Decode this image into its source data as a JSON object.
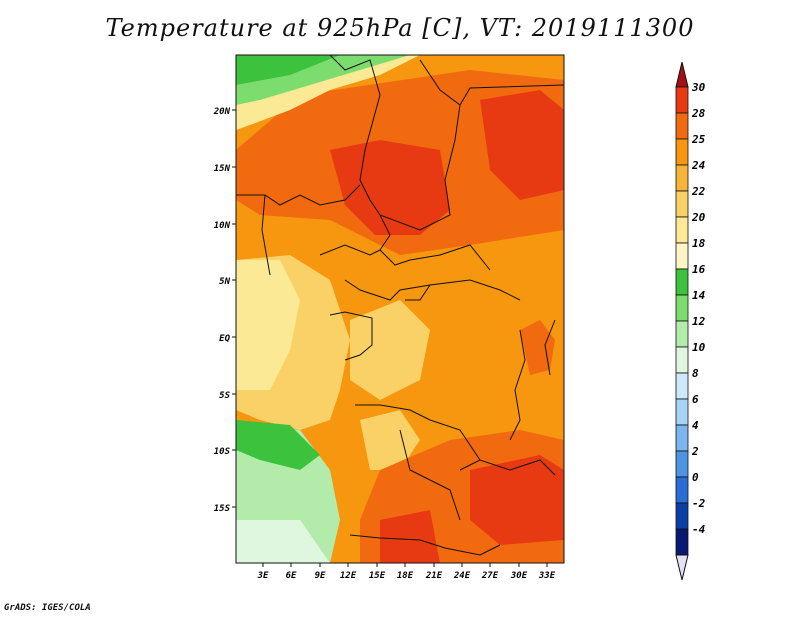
{
  "title": "Temperature at 925hPa [C], VT: 2019111300",
  "credit": "GrADS: IGES/COLA",
  "map": {
    "lat_labels": [
      "20N",
      "15N",
      "10N",
      "5N",
      "EQ",
      "5S",
      "10S",
      "15S"
    ],
    "lon_labels": [
      "3E",
      "6E",
      "9E",
      "12E",
      "15E",
      "18E",
      "21E",
      "24E",
      "27E",
      "30E",
      "33E"
    ]
  },
  "colorbar": {
    "labels": [
      "30",
      "28",
      "25",
      "24",
      "22",
      "20",
      "18",
      "16",
      "14",
      "12",
      "10",
      "8",
      "6",
      "4",
      "2",
      "0",
      "-2",
      "-4"
    ],
    "colors": [
      "#a50f15",
      "#e83a12",
      "#f26a10",
      "#f7960f",
      "#f8b33a",
      "#fad166",
      "#fce995",
      "#fdf6c4",
      "#3cc23c",
      "#7ddc6e",
      "#b3ecaa",
      "#dff7df",
      "#cde7fb",
      "#a9d3f6",
      "#7bb6ef",
      "#4e94e3",
      "#2a6dd6",
      "#0a3fa8",
      "#081873",
      "#e4e0f5"
    ]
  }
}
